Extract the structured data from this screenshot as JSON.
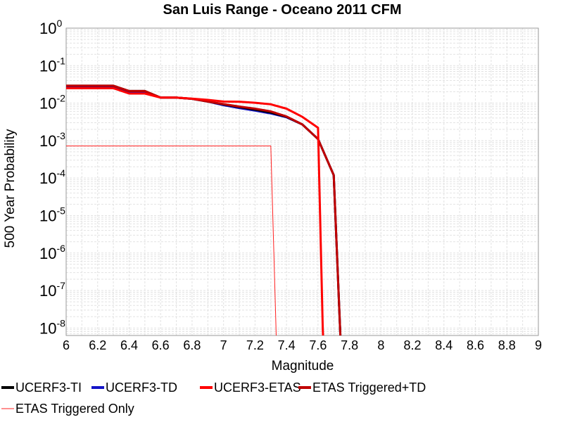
{
  "chart_data": {
    "type": "line",
    "title": "San Luis Range - Oceano 2011 CFM",
    "xlabel": "Magnitude",
    "ylabel": "500 Year Probability",
    "xlim": [
      6,
      9
    ],
    "ylim_log10": [
      -8.2,
      0
    ],
    "y_scale": "log",
    "grid": true,
    "legend_position": "bottom",
    "x_ticks": [
      "6",
      "6.2",
      "6.4",
      "6.6",
      "6.8",
      "7",
      "7.2",
      "7.4",
      "7.6",
      "7.8",
      "8",
      "8.2",
      "8.4",
      "8.6",
      "8.8",
      "9"
    ],
    "y_ticks": [
      {
        "base": "10",
        "exp": "0"
      },
      {
        "base": "10",
        "exp": "-1"
      },
      {
        "base": "10",
        "exp": "-2"
      },
      {
        "base": "10",
        "exp": "-3"
      },
      {
        "base": "10",
        "exp": "-4"
      },
      {
        "base": "10",
        "exp": "-5"
      },
      {
        "base": "10",
        "exp": "-6"
      },
      {
        "base": "10",
        "exp": "-7"
      },
      {
        "base": "10",
        "exp": "-8"
      }
    ],
    "series": [
      {
        "name": "UCERF3-TI",
        "color": "#000000",
        "width": 3,
        "x": [
          6.0,
          6.3,
          6.4,
          6.5,
          6.6,
          6.7,
          6.8,
          6.9,
          7.0,
          7.1,
          7.2,
          7.3,
          7.4,
          7.5,
          7.6,
          7.7,
          7.75
        ],
        "y": [
          0.029,
          0.029,
          0.021,
          0.021,
          0.014,
          0.014,
          0.013,
          0.011,
          0.0092,
          0.0078,
          0.0067,
          0.0056,
          0.0043,
          0.0027,
          0.0011,
          0.00012,
          1e-09
        ]
      },
      {
        "name": "UCERF3-TD",
        "color": "#1414c8",
        "width": 3,
        "x": [
          6.0,
          6.3,
          6.4,
          6.5,
          6.6,
          6.7,
          6.8,
          6.9,
          7.0,
          7.1,
          7.2,
          7.3,
          7.4,
          7.5,
          7.6,
          7.7,
          7.75
        ],
        "y": [
          0.028,
          0.028,
          0.02,
          0.02,
          0.014,
          0.014,
          0.013,
          0.011,
          0.0088,
          0.0074,
          0.0063,
          0.0053,
          0.0042,
          0.0027,
          0.0011,
          0.00012,
          1e-09
        ]
      },
      {
        "name": "UCERF3-ETAS",
        "color": "#ff0000",
        "width": 3,
        "x": [
          6.0,
          6.3,
          6.4,
          6.5,
          6.6,
          6.7,
          6.8,
          6.9,
          7.0,
          7.1,
          7.2,
          7.3,
          7.4,
          7.5,
          7.6,
          7.63,
          7.64
        ],
        "y": [
          0.025,
          0.025,
          0.018,
          0.018,
          0.014,
          0.014,
          0.0132,
          0.0122,
          0.011,
          0.0109,
          0.0102,
          0.0093,
          0.0071,
          0.0043,
          0.0022,
          1e-08,
          1e-09
        ]
      },
      {
        "name": "ETAS Triggered+TD",
        "color": "#c00000",
        "width": 3,
        "x": [
          6.0,
          6.3,
          6.4,
          6.5,
          6.6,
          6.7,
          6.8,
          6.9,
          7.0,
          7.1,
          7.2,
          7.3,
          7.4,
          7.5,
          7.6,
          7.7,
          7.75
        ],
        "y": [
          0.029,
          0.029,
          0.021,
          0.021,
          0.014,
          0.014,
          0.013,
          0.011,
          0.0094,
          0.0081,
          0.0071,
          0.006,
          0.0044,
          0.0027,
          0.0011,
          0.00012,
          1e-09
        ]
      },
      {
        "name": "ETAS Triggered Only",
        "color": "#ff2020",
        "width": 1,
        "x": [
          6.0,
          7.3,
          7.34
        ],
        "y": [
          0.00072,
          0.00072,
          1e-09
        ]
      }
    ]
  }
}
